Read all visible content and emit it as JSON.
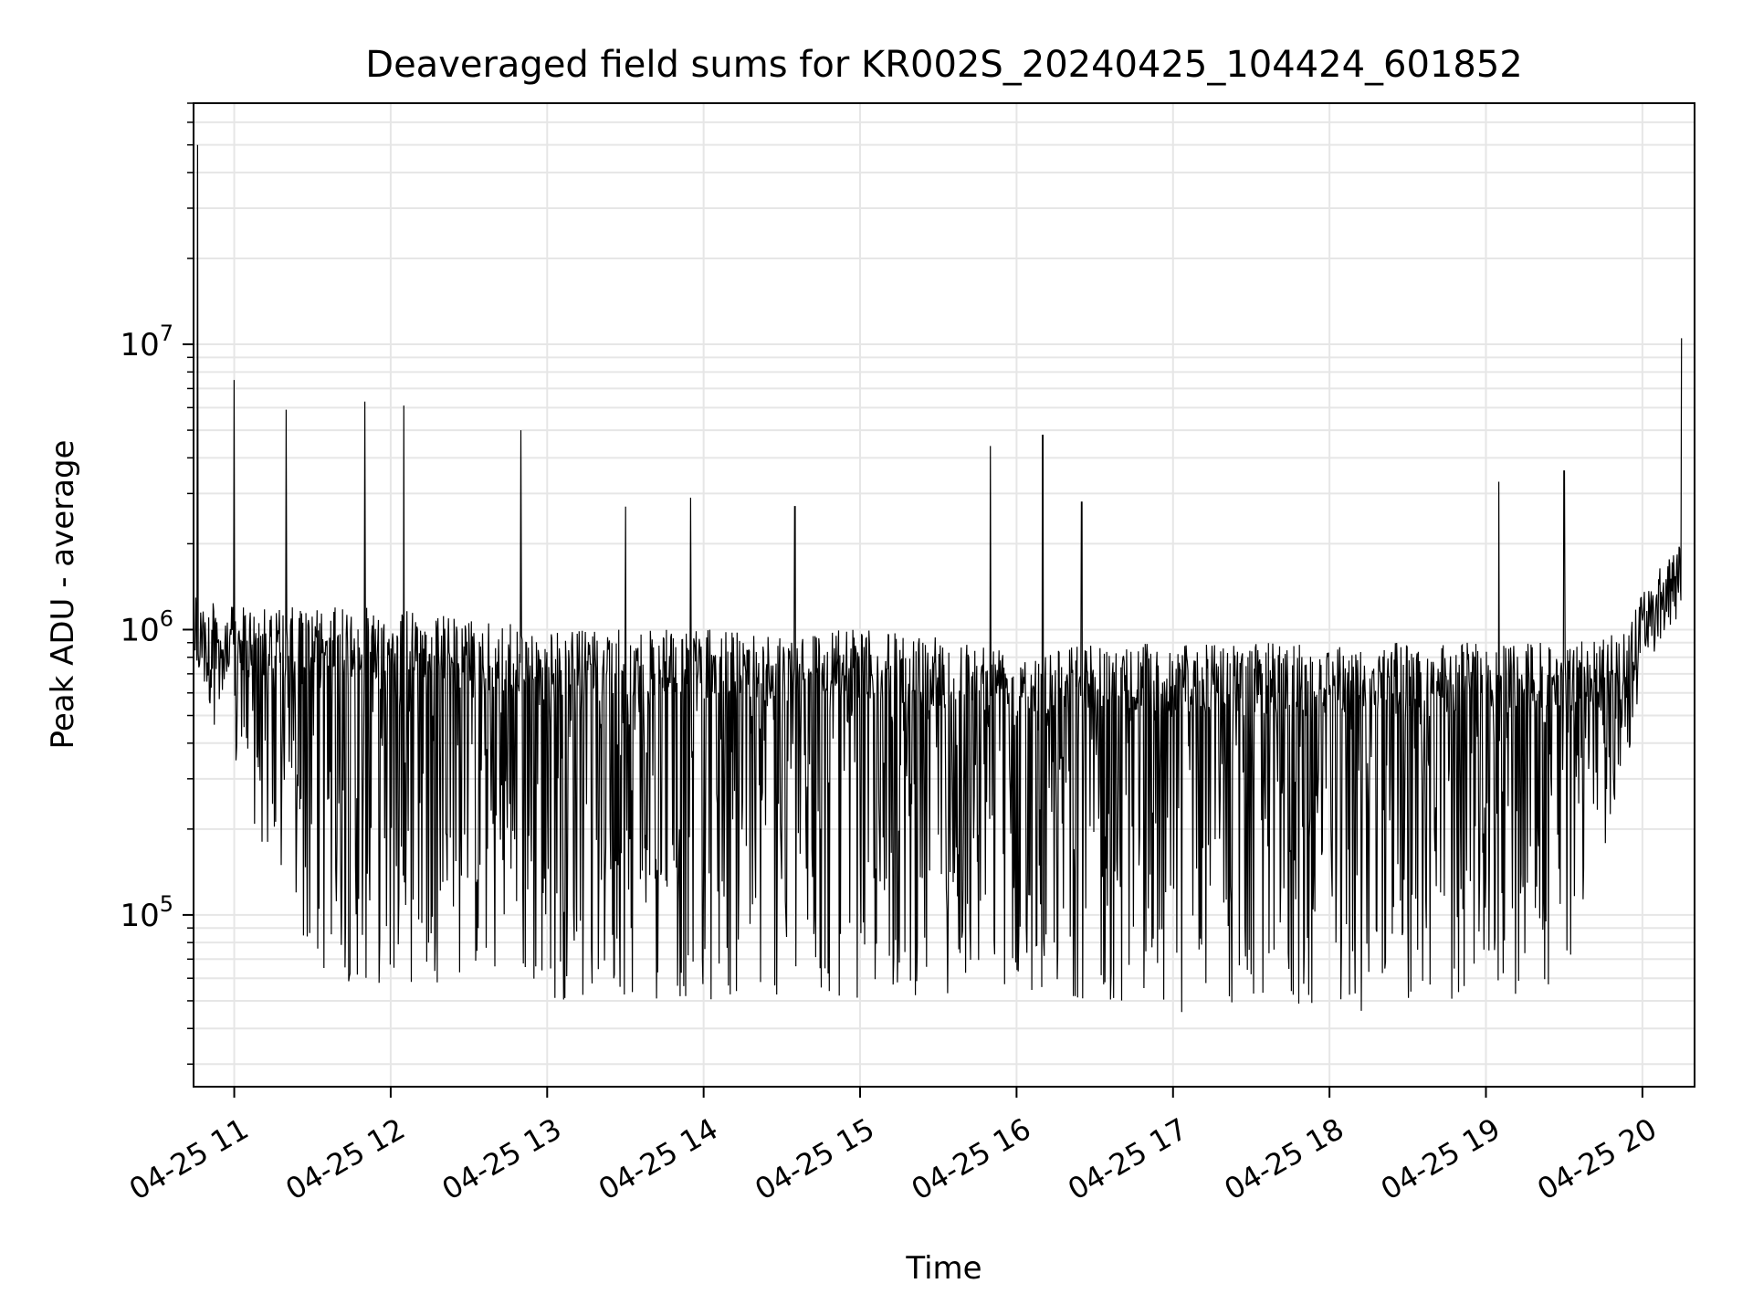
{
  "chart_data": {
    "type": "line",
    "title": "Deaveraged field sums for KR002S_20240425_104424_601852",
    "xlabel": "Time",
    "ylabel": "Peak ADU - average",
    "y_scale": "log",
    "xlim": [
      "2024-04-25T10:44:24",
      "2024-04-25T20:20:00"
    ],
    "ylim": [
      25000,
      70000000
    ],
    "x_ticks": [
      {
        "label": "04-25 11",
        "value": "2024-04-25T11:00"
      },
      {
        "label": "04-25 12",
        "value": "2024-04-25T12:00"
      },
      {
        "label": "04-25 13",
        "value": "2024-04-25T13:00"
      },
      {
        "label": "04-25 14",
        "value": "2024-04-25T14:00"
      },
      {
        "label": "04-25 15",
        "value": "2024-04-25T15:00"
      },
      {
        "label": "04-25 16",
        "value": "2024-04-25T16:00"
      },
      {
        "label": "04-25 17",
        "value": "2024-04-25T17:00"
      },
      {
        "label": "04-25 18",
        "value": "2024-04-25T18:00"
      },
      {
        "label": "04-25 19",
        "value": "2024-04-25T19:00"
      },
      {
        "label": "04-25 20",
        "value": "2024-04-25T20:00"
      }
    ],
    "y_ticks": [
      {
        "base": "10",
        "exp": "5",
        "value": 100000
      },
      {
        "base": "10",
        "exp": "6",
        "value": 1000000
      },
      {
        "base": "10",
        "exp": "7",
        "value": 10000000
      }
    ],
    "grid": true,
    "line_color": "#000000",
    "grid_color": "#e6e6e6",
    "series": [
      {
        "envelope": {
          "x": [
            "2024-04-25T10:45",
            "2024-04-25T11:00",
            "2024-04-25T11:30",
            "2024-04-25T12:00",
            "2024-04-25T12:30",
            "2024-04-25T13:00",
            "2024-04-25T14:00",
            "2024-04-25T15:00",
            "2024-04-25T16:00",
            "2024-04-25T17:00",
            "2024-04-25T18:00",
            "2024-04-25T19:00",
            "2024-04-25T19:30",
            "2024-04-25T19:55",
            "2024-04-25T20:00",
            "2024-04-25T20:15"
          ],
          "upper": [
            1300000,
            1200000,
            1200000,
            1200000,
            1100000,
            1000000,
            1000000,
            1000000,
            900000,
            900000,
            900000,
            900000,
            900000,
            1000000,
            1400000,
            2000000
          ],
          "lower": [
            700000,
            300000,
            60000,
            55000,
            60000,
            50000,
            50000,
            50000,
            55000,
            45000,
            45000,
            50000,
            55000,
            350000,
            700000,
            1200000
          ]
        },
        "spikes": [
          {
            "x": "2024-04-25T10:46",
            "y": 50000000
          },
          {
            "x": "2024-04-25T11:00",
            "y": 7500000
          },
          {
            "x": "2024-04-25T11:20",
            "y": 5900000
          },
          {
            "x": "2024-04-25T11:50",
            "y": 6300000
          },
          {
            "x": "2024-04-25T12:05",
            "y": 6100000
          },
          {
            "x": "2024-04-25T12:50",
            "y": 5000000
          },
          {
            "x": "2024-04-25T13:30",
            "y": 2700000
          },
          {
            "x": "2024-04-25T13:55",
            "y": 2900000
          },
          {
            "x": "2024-04-25T14:35",
            "y": 2700000
          },
          {
            "x": "2024-04-25T15:50",
            "y": 4400000
          },
          {
            "x": "2024-04-25T16:10",
            "y": 4800000
          },
          {
            "x": "2024-04-25T16:25",
            "y": 2800000
          },
          {
            "x": "2024-04-25T19:05",
            "y": 3300000
          },
          {
            "x": "2024-04-25T19:30",
            "y": 3600000
          },
          {
            "x": "2024-04-25T20:15",
            "y": 10500000
          }
        ]
      }
    ]
  }
}
